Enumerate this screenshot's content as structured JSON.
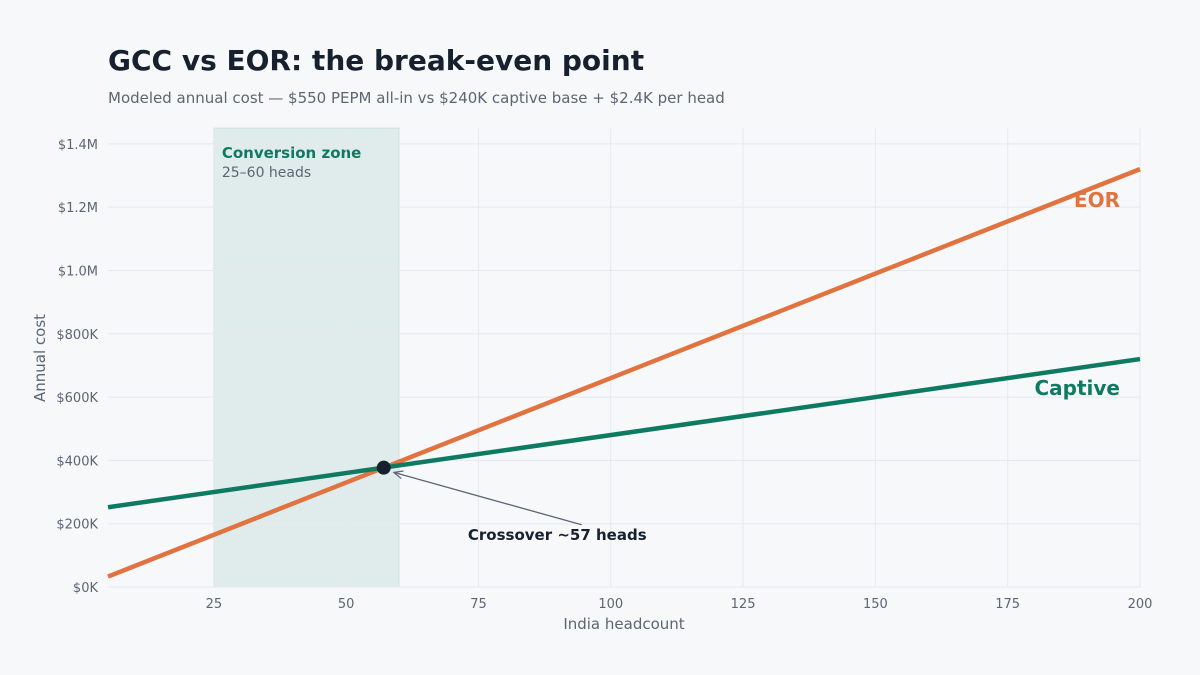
{
  "chart_data": {
    "type": "line",
    "title": "GCC vs EOR: the break-even point",
    "subtitle": "Modeled annual cost — $550 PEPM all-in vs $240K captive base + $2.4K per head",
    "xlabel": "India headcount",
    "ylabel": "Annual cost",
    "xlim": [
      5,
      200
    ],
    "ylim": [
      0,
      1450000
    ],
    "x_ticks": [
      25,
      50,
      75,
      100,
      125,
      150,
      175,
      200
    ],
    "y_ticks": [
      {
        "value": 0,
        "label": "$0K"
      },
      {
        "value": 200000,
        "label": "$200K"
      },
      {
        "value": 400000,
        "label": "$400K"
      },
      {
        "value": 600000,
        "label": "$600K"
      },
      {
        "value": 800000,
        "label": "$800K"
      },
      {
        "value": 1000000,
        "label": "$1.0M"
      },
      {
        "value": 1200000,
        "label": "$1.2M"
      },
      {
        "value": 1400000,
        "label": "$1.4M"
      }
    ],
    "grid": true,
    "series": [
      {
        "name": "EOR",
        "color": "#e07340",
        "x": [
          5,
          200
        ],
        "y": [
          33000,
          1320000
        ]
      },
      {
        "name": "Captive",
        "color": "#0e7a62",
        "x": [
          5,
          200
        ],
        "y": [
          252000,
          720000
        ]
      }
    ],
    "shaded_region": {
      "x_start": 25,
      "x_end": 60,
      "label": "Conversion zone",
      "sublabel": "25–60 heads",
      "color": "#0e7a62"
    },
    "crossover": {
      "x": 57.1,
      "y": 377000,
      "label": "Crossover ~57 heads",
      "label_x": 73,
      "label_y": 165000
    }
  }
}
